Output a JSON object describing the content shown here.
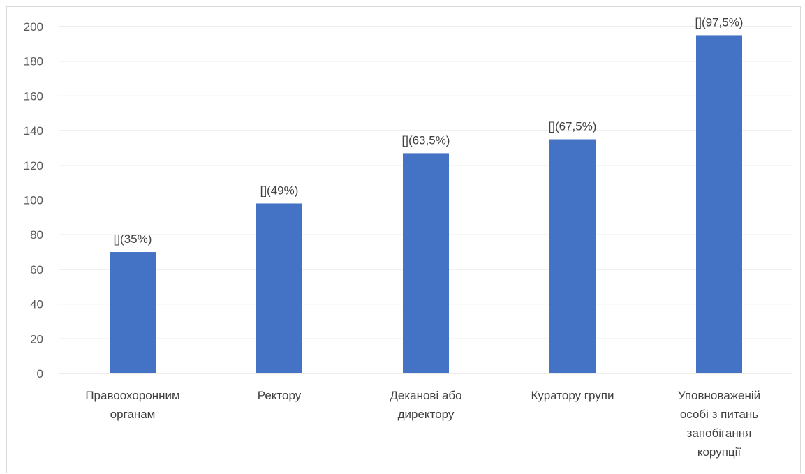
{
  "chart_data": {
    "type": "bar",
    "categories": [
      [
        "Правоохоронним",
        "органам"
      ],
      [
        "Ректору"
      ],
      [
        "Деканові  або",
        "директору"
      ],
      [
        "Куратору групи"
      ],
      [
        "Уповноваженій",
        "особі з питань",
        "запобігання",
        "корупції"
      ]
    ],
    "values": [
      70,
      98,
      127,
      135,
      195
    ],
    "data_labels": [
      "[](35%)",
      "[](49%)",
      "[](63,5%)",
      "[](67,5%)",
      "[](97,5%)"
    ],
    "ylim": [
      0,
      200
    ],
    "yticks": [
      0,
      20,
      40,
      60,
      80,
      100,
      120,
      140,
      160,
      180,
      200
    ],
    "grid": true,
    "bar_color": "#4472c4",
    "grid_color": "#d9d9d9"
  }
}
